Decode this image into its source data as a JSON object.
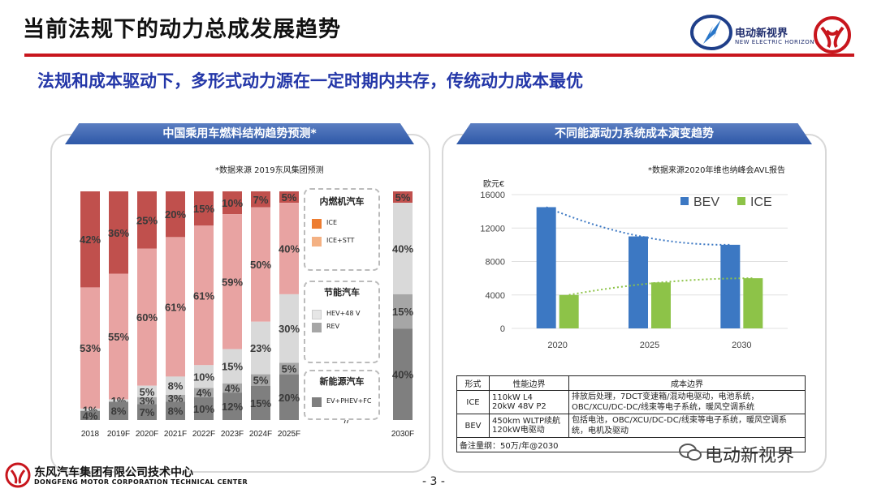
{
  "header": {
    "title": "当前法规下的动力总成发展趋势",
    "subtitle": "法规和成本驱动下，多形式动力源在一定时期内共存，传统动力成本最优",
    "brand": "电动新视界",
    "brand_en": "NEW ELECTRIC HORIZON"
  },
  "left_panel": {
    "title": "中国乘用车燃料结构趋势预测*",
    "source": "*数据来源  2019东风集团预测",
    "legend": {
      "ice_group": {
        "title": "内燃机汽车",
        "items": [
          "ICE",
          "ICE+STT"
        ]
      },
      "saving_group": {
        "title": "节能汽车",
        "items": [
          "HEV+48 V",
          "REV"
        ]
      },
      "nev_group": {
        "title": "新能源汽车",
        "items": [
          "EV+PHEV+FC"
        ]
      }
    },
    "break_mark": "//"
  },
  "chart_data": [
    {
      "type": "bar",
      "stacked": true,
      "categories": [
        "2018",
        "2019F",
        "2020F",
        "2021F",
        "2022F",
        "2023F",
        "2024F",
        "2025F",
        "2030F"
      ],
      "series": [
        {
          "name": "ICE",
          "values": [
            42,
            36,
            25,
            20,
            15,
            10,
            7,
            5,
            5
          ]
        },
        {
          "name": "ICE+STT",
          "values": [
            53,
            55,
            60,
            61,
            61,
            59,
            50,
            40,
            0
          ]
        },
        {
          "name": "HEV+48 V",
          "values": [
            1,
            1,
            5,
            8,
            10,
            15,
            23,
            30,
            40
          ]
        },
        {
          "name": "REV",
          "values": [
            0,
            0,
            3,
            3,
            4,
            4,
            5,
            5,
            15
          ]
        },
        {
          "name": "EV+PHEV+FC",
          "values": [
            4,
            8,
            7,
            8,
            10,
            12,
            15,
            20,
            40
          ]
        }
      ],
      "labels": [
        [
          "42%",
          "53%",
          "1%",
          "",
          "4%"
        ],
        [
          "36%",
          "55%",
          "1%",
          "",
          "8%"
        ],
        [
          "25%",
          "60%",
          "5%",
          "3%",
          "7%"
        ],
        [
          "20%",
          "61%",
          "8%",
          "3%",
          "8%"
        ],
        [
          "15%",
          "61%",
          "10%",
          "4%",
          "10%"
        ],
        [
          "10%",
          "59%",
          "15%",
          "4%",
          "12%"
        ],
        [
          "7%",
          "50%",
          "23%",
          "5%",
          "15%"
        ],
        [
          "5%",
          "40%",
          "30%",
          "5%",
          "20%"
        ],
        [
          "5%",
          "",
          "40%",
          "15%",
          "40%"
        ]
      ],
      "colors": [
        "#c0504d",
        "#e8a3a2",
        "#d9d9d9",
        "#a6a6a6",
        "#7f7f7f"
      ],
      "colors_2030": [
        "#c0504d",
        "#e8a3a2",
        "#d9d9d9",
        "#a6a6a6",
        "#7f7f7f"
      ]
    },
    {
      "type": "bar",
      "title": "不同能源动力系统成本演变趋势",
      "source": "*数据来源2020年维也纳峰会AVL报告",
      "ylabel": "欧元€",
      "categories": [
        "2020",
        "2025",
        "2030"
      ],
      "series": [
        {
          "name": "BEV",
          "values": [
            14500,
            11000,
            10000
          ],
          "color": "#3c78c3"
        },
        {
          "name": "ICE",
          "values": [
            4000,
            5500,
            6000
          ],
          "color": "#8dc348"
        }
      ],
      "trendlines": true,
      "ylim": [
        0,
        16000
      ],
      "yticks": [
        0,
        4000,
        8000,
        12000,
        16000
      ],
      "legend": "top-right"
    }
  ],
  "right_panel": {
    "title": "不同能源动力系统成本演变趋势",
    "source": "*数据来源2020年维也纳峰会AVL报告",
    "ylabel": "欧元€",
    "legend_bev": "BEV",
    "legend_ice": "ICE",
    "table": {
      "headers": [
        "形式",
        "性能边界",
        "成本边界"
      ],
      "rows": [
        {
          "form": "ICE",
          "perf": "110kW L4\n20kW 48V P2",
          "cost": "排放后处理，7DCT变速箱/混动电驱动，电池系统，OBC/XCU/DC-DC/线束等电子系统，暖风空调系统"
        },
        {
          "form": "BEV",
          "perf": "450km WLTP续航\n120kW电驱动",
          "cost": "包括电池，OBC/XCU/DC-DC/线束等电子系统，暖风空调系统，电机及驱动"
        }
      ],
      "note": "备注量纲：50万/年@2030"
    }
  },
  "footer": {
    "company_cn": "东风汽车集团有限公司技术中心",
    "company_en": "DONGFENG MOTOR CORPORATION TECHNICAL CENTER",
    "page": "- 3 -",
    "watermark": "电动新视界"
  }
}
